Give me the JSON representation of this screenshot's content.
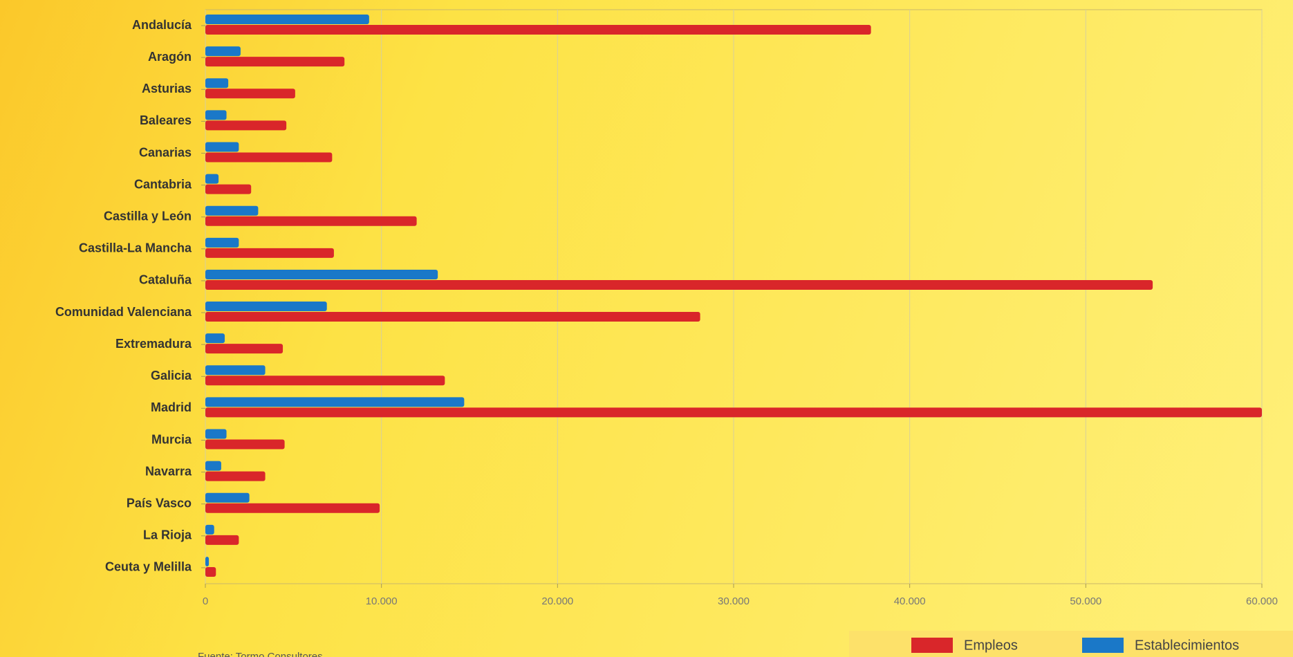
{
  "chart_data": {
    "type": "hbar",
    "categories": [
      "Andalucía",
      "Aragón",
      "Asturias",
      "Baleares",
      "Canarias",
      "Cantabria",
      "Castilla y León",
      "Castilla-La Mancha",
      "Cataluña",
      "Comunidad Valenciana",
      "Extremadura",
      "Galicia",
      "Madrid",
      "Murcia",
      "Navarra",
      "País Vasco",
      "La Rioja",
      "Ceuta y Melilla"
    ],
    "series": [
      {
        "name": "Empleos",
        "color": "#d9262a",
        "values": [
          37800,
          7900,
          5100,
          4600,
          7200,
          2600,
          12000,
          7300,
          53800,
          28100,
          4400,
          13600,
          60000,
          4500,
          3400,
          9900,
          1900,
          600
        ]
      },
      {
        "name": "Establecimientos",
        "color": "#1a78c8",
        "values": [
          9300,
          2000,
          1300,
          1200,
          1900,
          750,
          3000,
          1900,
          13200,
          6900,
          1100,
          3400,
          14700,
          1200,
          900,
          2500,
          500,
          200
        ]
      }
    ],
    "xlim": [
      0,
      60000
    ],
    "xticks": [
      0,
      {
        "value": 10000,
        "label": "10.000"
      },
      {
        "value": 20000,
        "label": "20.000"
      },
      {
        "value": 30000,
        "label": "30.000"
      },
      {
        "value": 40000,
        "label": "40.000"
      },
      {
        "value": 50000,
        "label": "50.000"
      },
      {
        "value": 60000,
        "label": "60.000"
      }
    ],
    "grid": true,
    "legend": "bottom-right",
    "source": "Fuente: Tormo Consultores"
  }
}
